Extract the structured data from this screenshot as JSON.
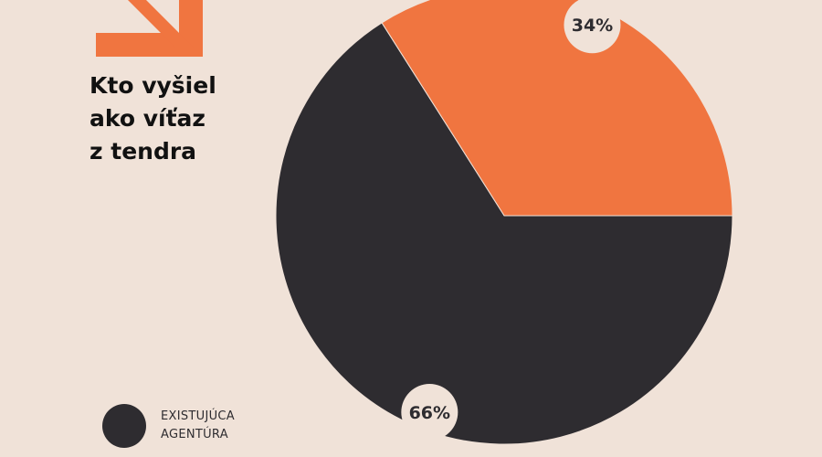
{
  "title_lines": [
    "Kto vyšiel",
    "ako víťaz",
    "z tendra"
  ],
  "legend": {
    "lines": [
      "EXISTUJÚCA",
      "AGENTÚRA"
    ]
  },
  "colors": {
    "background": "#f0e2d8",
    "accent": "#f07540",
    "dark": "#2e2c30",
    "label_bubble": "#f0e2d8"
  },
  "icons": {
    "corner": "arrow-down-right-icon"
  },
  "chart_data": {
    "type": "pie",
    "slices": [
      {
        "label": "34%",
        "value": 34,
        "color": "#f07540"
      },
      {
        "label": "66%",
        "value": 66,
        "color": "#2e2c30"
      }
    ],
    "legend_placement": "bottom-left"
  }
}
